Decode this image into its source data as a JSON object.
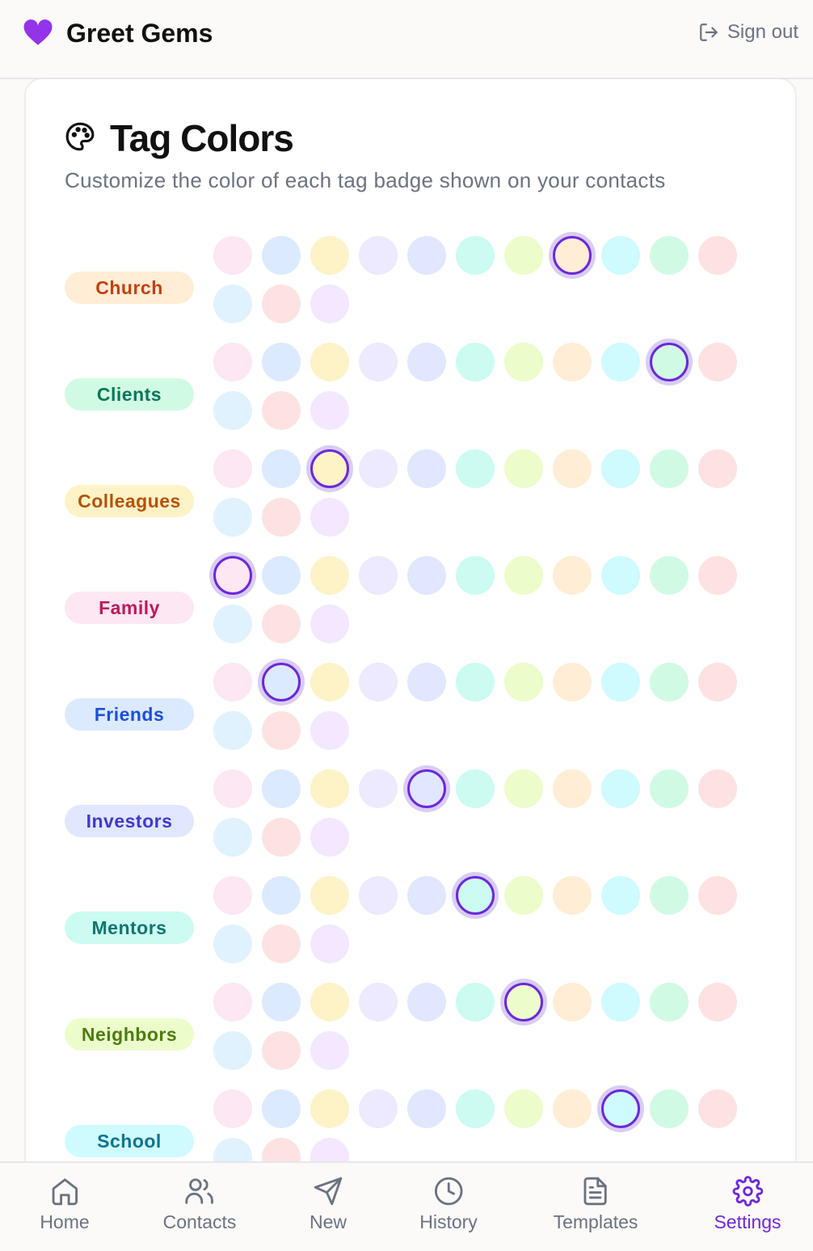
{
  "header": {
    "app_name": "Greet Gems",
    "sign_out": "Sign out"
  },
  "card": {
    "title": "Tag Colors",
    "subtitle": "Customize the color of each tag badge shown on your contacts"
  },
  "palette": {
    "colors": [
      "#fce7f3",
      "#dbeafe",
      "#fef3c7",
      "#ede9fe",
      "#e0e7ff",
      "#ccfbf1",
      "#ecfccb",
      "#ffedd5",
      "#cffafe",
      "#d1fae5",
      "#fee2e2",
      "#e0f2fe",
      "#fee2e2",
      "#f3e8ff"
    ],
    "text_colors": [
      "#be185d",
      "#1d4ed8",
      "#b45309",
      "#6d28d9",
      "#4338ca",
      "#0f766e",
      "#4d7c0f",
      "#c2410c",
      "#0e7490",
      "#047857",
      "#b91c1c",
      "#0369a1",
      "#be123c",
      "#7e22ce"
    ]
  },
  "tags": [
    {
      "name": "Church",
      "selected": 7
    },
    {
      "name": "Clients",
      "selected": 9
    },
    {
      "name": "Colleagues",
      "selected": 2
    },
    {
      "name": "Family",
      "selected": 0
    },
    {
      "name": "Friends",
      "selected": 1
    },
    {
      "name": "Investors",
      "selected": 4
    },
    {
      "name": "Mentors",
      "selected": 5
    },
    {
      "name": "Neighbors",
      "selected": 6
    },
    {
      "name": "School",
      "selected": 8
    }
  ],
  "nav": {
    "items": [
      "Home",
      "Contacts",
      "New",
      "History",
      "Templates",
      "Settings"
    ],
    "active": 5
  }
}
